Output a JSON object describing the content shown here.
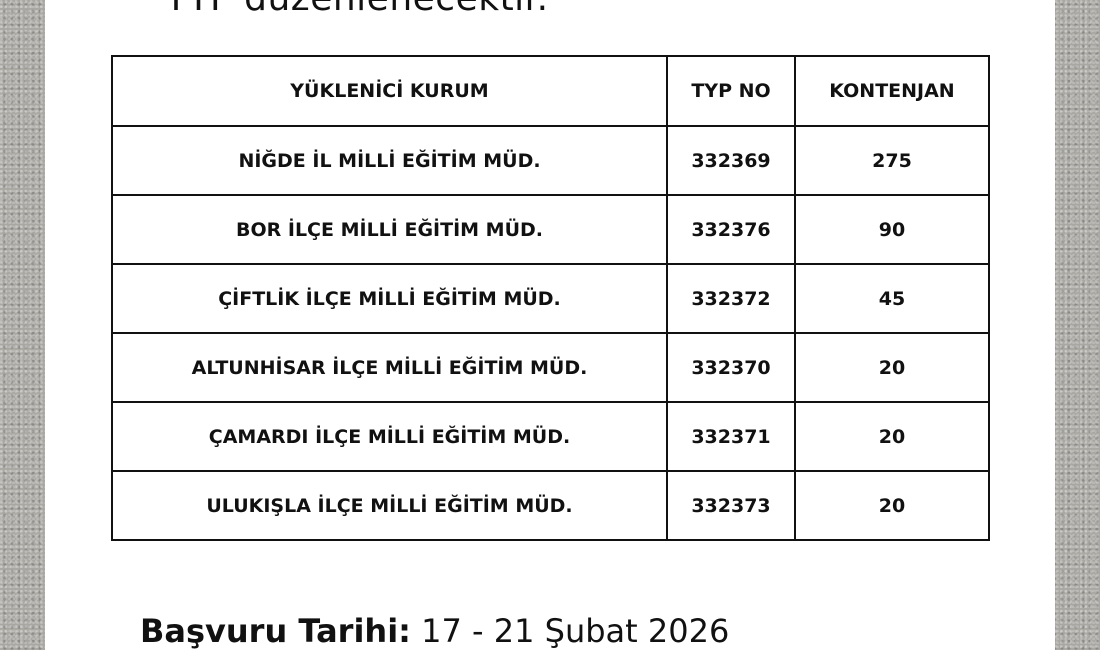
{
  "intro_text": "TYP düzenlenecektir.",
  "table": {
    "headers": [
      "YÜKLENİCİ KURUM",
      "TYP NO",
      "KONTENJAN"
    ],
    "rows": [
      [
        "NİĞDE İL MİLLİ EĞİTİM MÜD.",
        "332369",
        "275"
      ],
      [
        "BOR İLÇE MİLLİ EĞİTİM MÜD.",
        "332376",
        "90"
      ],
      [
        "ÇİFTLİK İLÇE MİLLİ EĞİTİM MÜD.",
        "332372",
        "45"
      ],
      [
        "ALTUNHİSAR İLÇE MİLLİ EĞİTİM MÜD.",
        "332370",
        "20"
      ],
      [
        "ÇAMARDI İLÇE MİLLİ EĞİTİM MÜD.",
        "332371",
        "20"
      ],
      [
        "ULUKIŞLA İLÇE MİLLİ EĞİTİM MÜD.",
        "332373",
        "20"
      ]
    ]
  },
  "footer": {
    "label": "Başvuru Tarihi:",
    "value": "17 - 21 Şubat 2026"
  }
}
